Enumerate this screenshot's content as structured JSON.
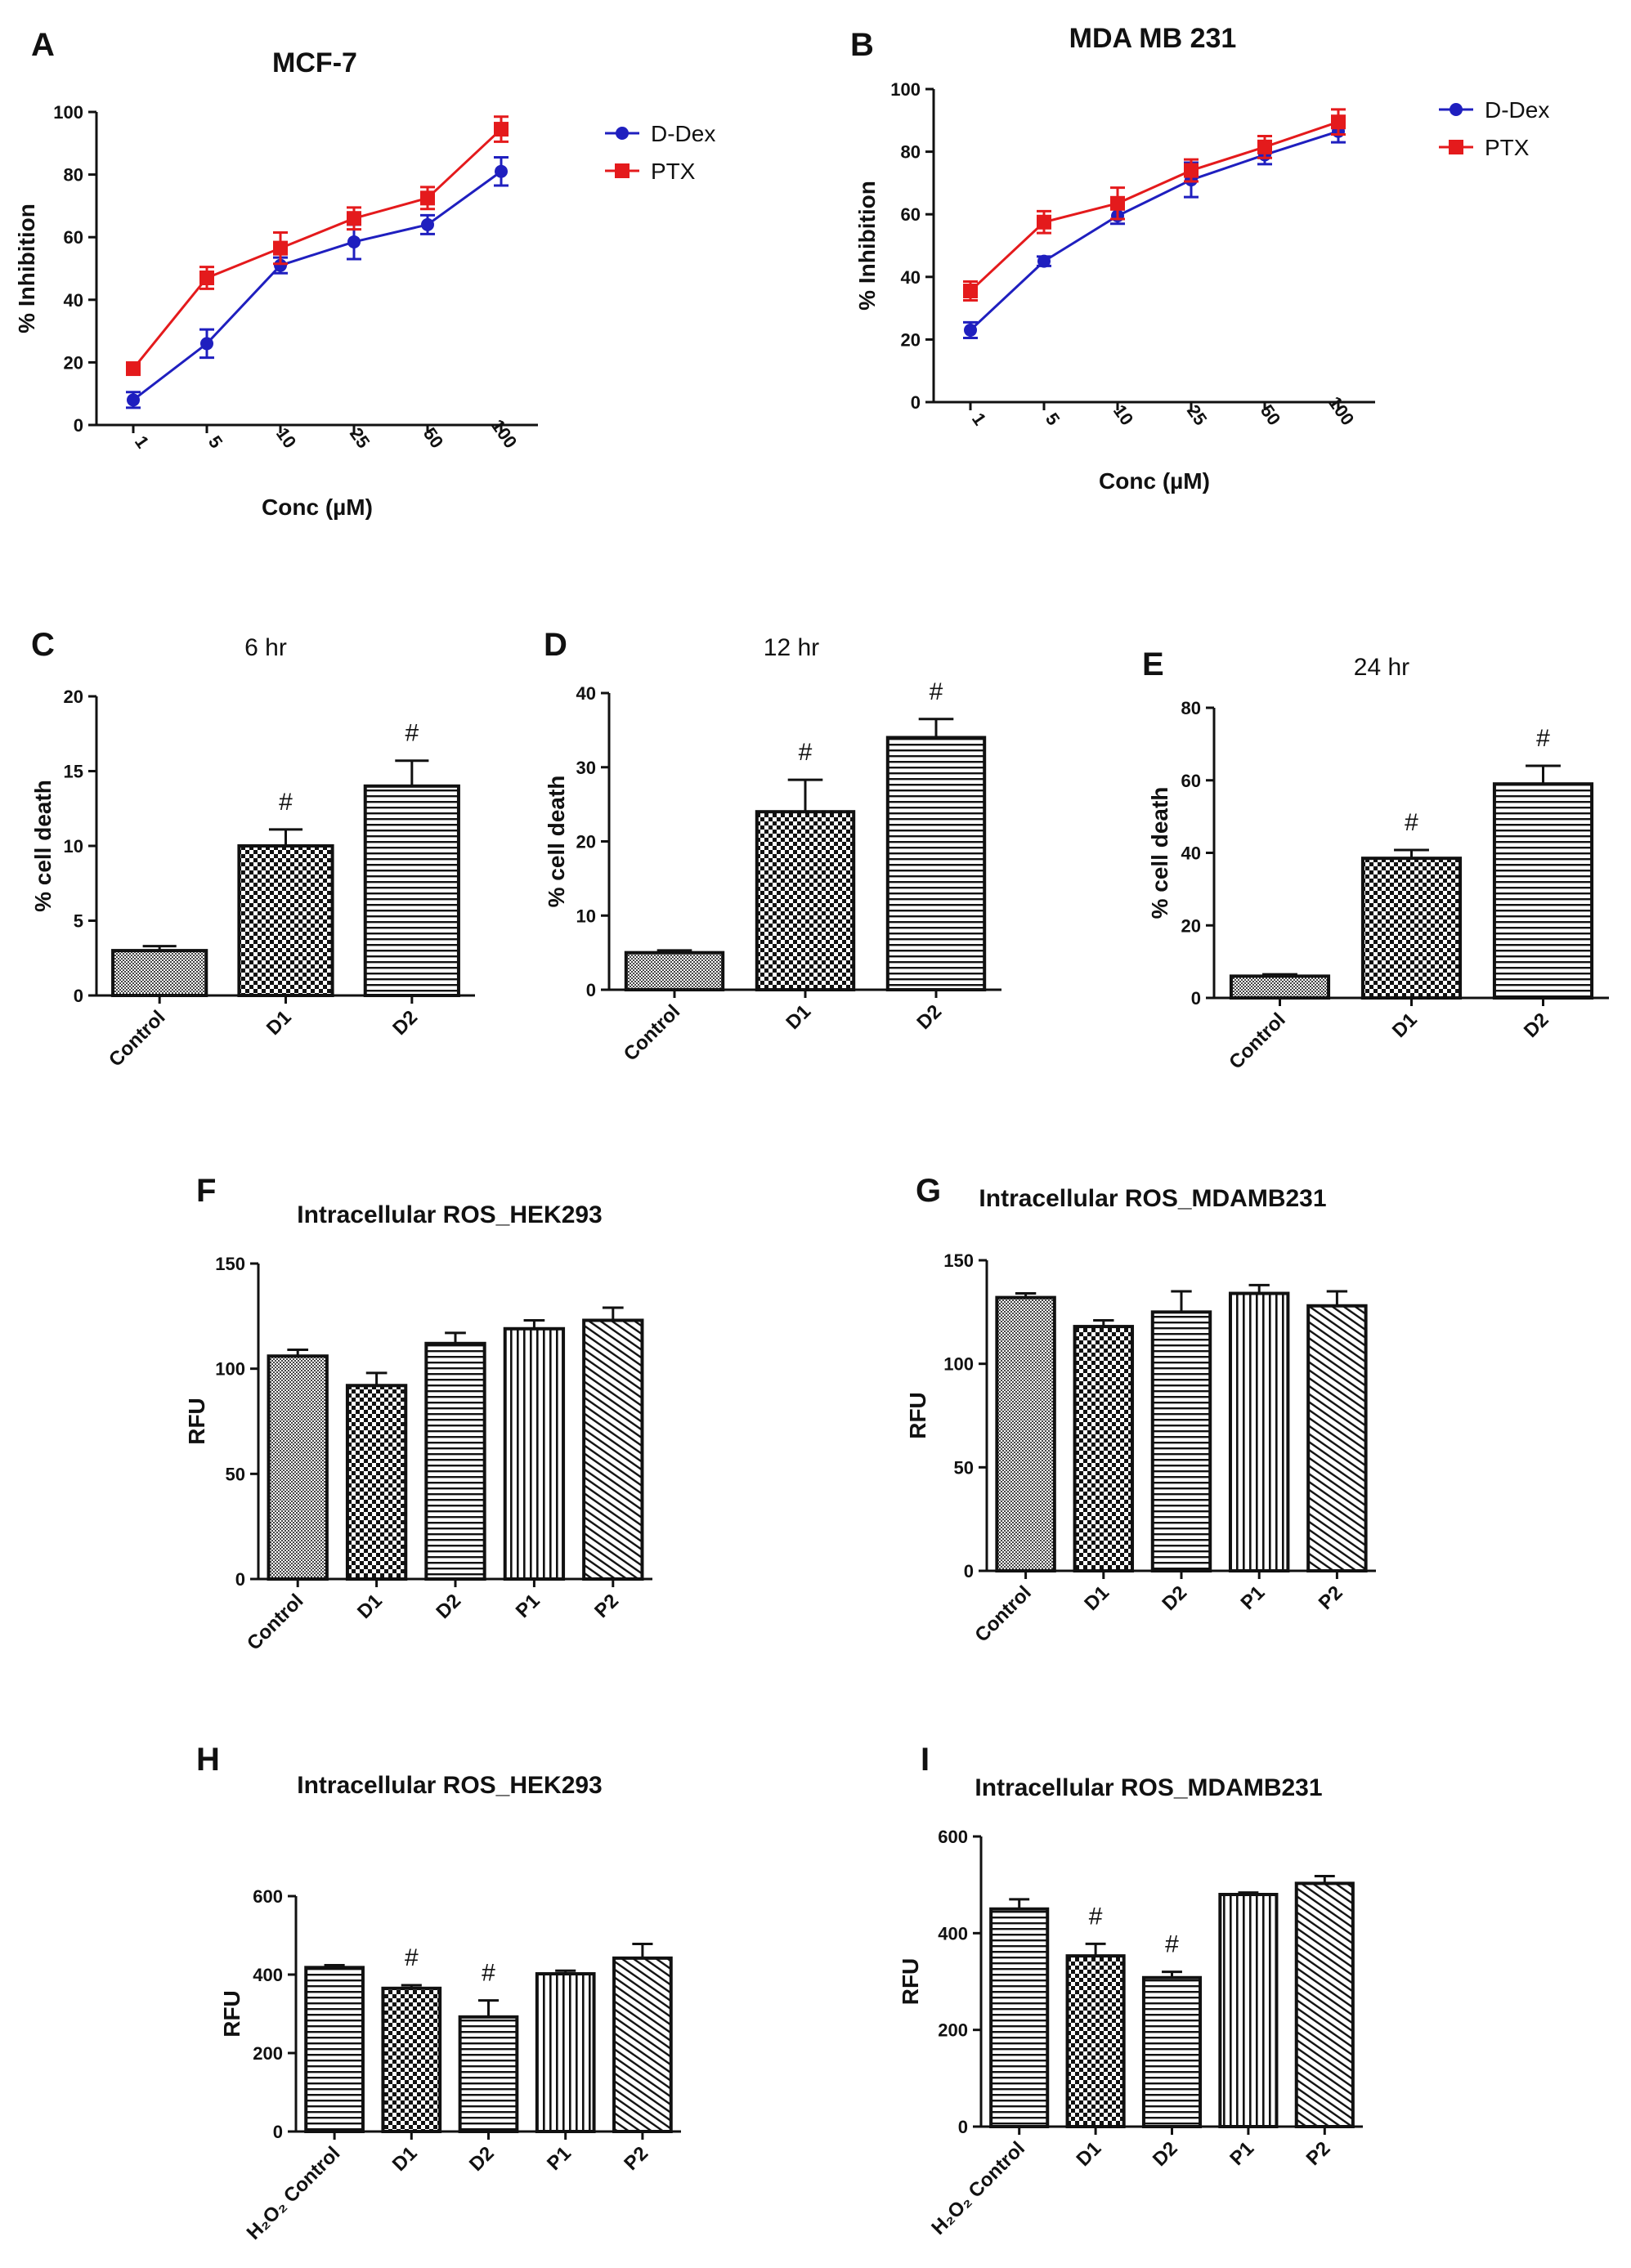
{
  "chart_data": [
    {
      "id": "A",
      "letter": "A",
      "type": "line",
      "title": "MCF-7",
      "xlabel": "Conc (µM)",
      "ylabel": "% Inhibition",
      "categories": [
        "1",
        "5",
        "10",
        "25",
        "50",
        "100"
      ],
      "ylim": [
        0,
        100
      ],
      "yticks": [
        0,
        20,
        40,
        60,
        80,
        100
      ],
      "series": [
        {
          "name": "D-Dex",
          "color": "#1f1fbf",
          "marker": "circle",
          "values": [
            8,
            26,
            51,
            58.5,
            64,
            81
          ],
          "errors": [
            2.5,
            4.5,
            2.5,
            5.5,
            3,
            4.5
          ]
        },
        {
          "name": "PTX",
          "color": "#e41a1c",
          "marker": "square",
          "values": [
            18,
            47,
            56.5,
            66,
            72.5,
            94.5
          ],
          "errors": [
            1.5,
            3.5,
            5,
            3.5,
            3.5,
            4
          ]
        }
      ]
    },
    {
      "id": "B",
      "letter": "B",
      "type": "line",
      "title": "MDA MB 231",
      "xlabel": "Conc (µM)",
      "ylabel": "% Inhibition",
      "categories": [
        "1",
        "5",
        "10",
        "25",
        "50",
        "100"
      ],
      "ylim": [
        0,
        100
      ],
      "yticks": [
        0,
        20,
        40,
        60,
        80,
        100
      ],
      "series": [
        {
          "name": "D-Dex",
          "color": "#1f1fbf",
          "marker": "circle",
          "values": [
            23,
            45,
            59.5,
            71,
            79,
            86.5
          ],
          "errors": [
            2.5,
            1.5,
            2.5,
            5.5,
            3,
            3.5
          ]
        },
        {
          "name": "PTX",
          "color": "#e41a1c",
          "marker": "square",
          "values": [
            35.5,
            57.5,
            63.5,
            74,
            81.5,
            89.5
          ],
          "errors": [
            3,
            3.5,
            5,
            3.5,
            3.5,
            4
          ]
        }
      ]
    },
    {
      "id": "C",
      "letter": "C",
      "type": "bar",
      "title": "6 hr",
      "ylabel": "% cell death",
      "categories": [
        "Control",
        "D1",
        "D2"
      ],
      "values": [
        3,
        10,
        14
      ],
      "errors": [
        0.3,
        1.1,
        1.7
      ],
      "ylim": [
        0,
        20
      ],
      "yticks": [
        0,
        5,
        10,
        15,
        20
      ],
      "patterns": [
        "fine",
        "checker",
        "hlines"
      ],
      "annotations": [
        "",
        "#",
        "#"
      ]
    },
    {
      "id": "D",
      "letter": "D",
      "type": "bar",
      "title": "12 hr",
      "ylabel": "% cell death",
      "categories": [
        "Control",
        "D1",
        "D2"
      ],
      "values": [
        5,
        24,
        34
      ],
      "errors": [
        0.3,
        4.3,
        2.5
      ],
      "ylim": [
        0,
        40
      ],
      "yticks": [
        0,
        10,
        20,
        30,
        40
      ],
      "patterns": [
        "fine",
        "checker",
        "hlines"
      ],
      "annotations": [
        "",
        "#",
        "#"
      ]
    },
    {
      "id": "E",
      "letter": "E",
      "type": "bar",
      "title": "24 hr",
      "ylabel": "% cell death",
      "categories": [
        "Control",
        "D1",
        "D2"
      ],
      "values": [
        6,
        38.5,
        59
      ],
      "errors": [
        0.5,
        2.3,
        5
      ],
      "ylim": [
        0,
        80
      ],
      "yticks": [
        0,
        20,
        40,
        60,
        80
      ],
      "patterns": [
        "fine",
        "checker",
        "hlines"
      ],
      "annotations": [
        "",
        "#",
        "#"
      ]
    },
    {
      "id": "F",
      "letter": "F",
      "type": "bar",
      "title": "Intracellular ROS_HEK293",
      "ylabel": "RFU",
      "categories": [
        "Control",
        "D1",
        "D2",
        "P1",
        "P2"
      ],
      "values": [
        106,
        92,
        112,
        119,
        123
      ],
      "errors": [
        3,
        6,
        5,
        4,
        6
      ],
      "ylim": [
        0,
        150
      ],
      "yticks": [
        0,
        50,
        100,
        150
      ],
      "patterns": [
        "fine",
        "checker",
        "hlines",
        "vlines",
        "diag"
      ],
      "annotations": [
        "",
        "",
        "",
        "",
        ""
      ]
    },
    {
      "id": "G",
      "letter": "G",
      "type": "bar",
      "title": "Intracellular ROS_MDAMB231",
      "ylabel": "RFU",
      "categories": [
        "Control",
        "D1",
        "D2",
        "P1",
        "P2"
      ],
      "values": [
        132,
        118,
        125,
        134,
        128
      ],
      "errors": [
        2,
        3,
        10,
        4,
        7
      ],
      "ylim": [
        0,
        150
      ],
      "yticks": [
        0,
        50,
        100,
        150
      ],
      "patterns": [
        "fine",
        "checker",
        "hlines",
        "vlines",
        "diag"
      ],
      "annotations": [
        "",
        "",
        "",
        "",
        ""
      ]
    },
    {
      "id": "H",
      "letter": "H",
      "type": "bar",
      "title": "Intracellular ROS_HEK293",
      "ylabel": "RFU",
      "categories": [
        "H₂O₂ Control",
        "D1",
        "D2",
        "P1",
        "P2"
      ],
      "values": [
        418,
        365,
        292,
        402,
        442
      ],
      "errors": [
        6,
        8,
        42,
        8,
        36
      ],
      "ylim": [
        0,
        600
      ],
      "yticks": [
        0,
        200,
        400,
        600
      ],
      "patterns": [
        "hlines",
        "checker",
        "hlines",
        "vlines",
        "diag"
      ],
      "annotations": [
        "",
        "#",
        "#",
        "",
        ""
      ]
    },
    {
      "id": "I",
      "letter": "I",
      "type": "bar",
      "title": "Intracellular ROS_MDAMB231",
      "ylabel": "RFU",
      "categories": [
        "H₂O₂ Control",
        "D1",
        "D2",
        "P1",
        "P2"
      ],
      "values": [
        450,
        353,
        308,
        480,
        503
      ],
      "errors": [
        20,
        25,
        12,
        4,
        15
      ],
      "ylim": [
        0,
        600
      ],
      "yticks": [
        0,
        200,
        400,
        600
      ],
      "patterns": [
        "hlines",
        "checker",
        "hlines",
        "vlines",
        "diag"
      ],
      "annotations": [
        "",
        "#",
        "#",
        "",
        ""
      ]
    }
  ]
}
